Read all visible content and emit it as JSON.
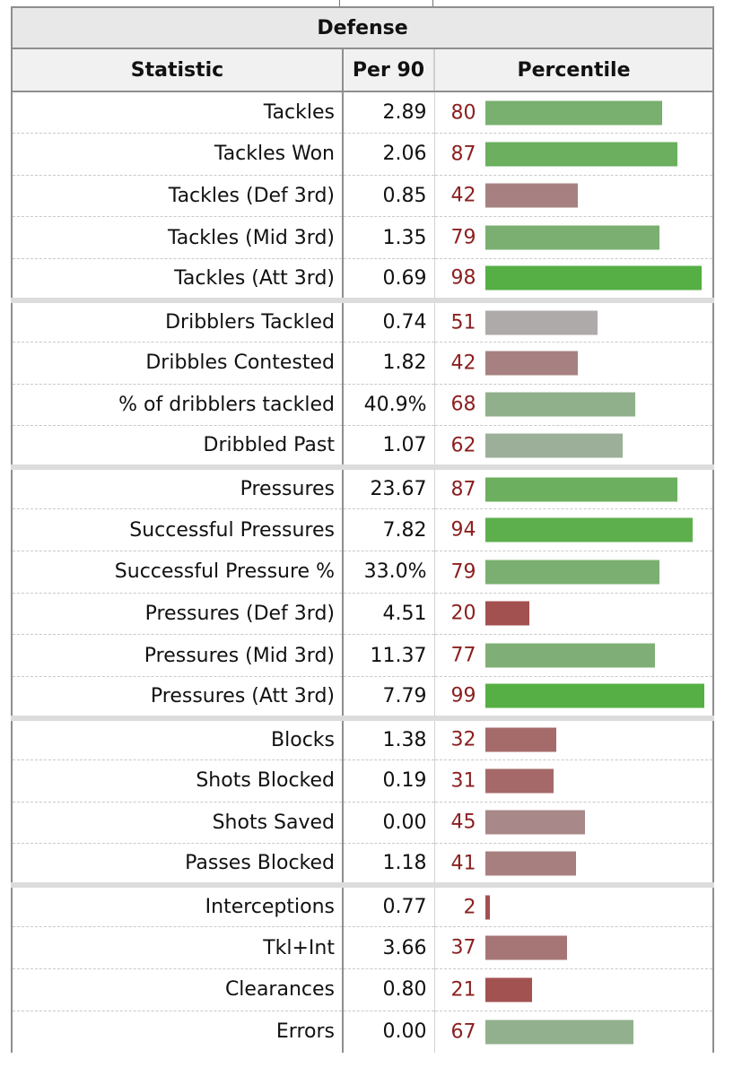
{
  "section_title": "Defense",
  "columns": {
    "statistic": "Statistic",
    "per90": "Per 90",
    "percentile": "Percentile"
  },
  "groups": [
    {
      "rows": [
        {
          "stat": "Tackles",
          "per90": "2.89",
          "pct": 80
        },
        {
          "stat": "Tackles Won",
          "per90": "2.06",
          "pct": 87
        },
        {
          "stat": "Tackles (Def 3rd)",
          "per90": "0.85",
          "pct": 42
        },
        {
          "stat": "Tackles (Mid 3rd)",
          "per90": "1.35",
          "pct": 79
        },
        {
          "stat": "Tackles (Att 3rd)",
          "per90": "0.69",
          "pct": 98
        }
      ]
    },
    {
      "rows": [
        {
          "stat": "Dribblers Tackled",
          "per90": "0.74",
          "pct": 51
        },
        {
          "stat": "Dribbles Contested",
          "per90": "1.82",
          "pct": 42
        },
        {
          "stat": "% of dribblers tackled",
          "per90": "40.9%",
          "pct": 68
        },
        {
          "stat": "Dribbled Past",
          "per90": "1.07",
          "pct": 62
        }
      ]
    },
    {
      "rows": [
        {
          "stat": "Pressures",
          "per90": "23.67",
          "pct": 87
        },
        {
          "stat": "Successful Pressures",
          "per90": "7.82",
          "pct": 94
        },
        {
          "stat": "Successful Pressure %",
          "per90": "33.0%",
          "pct": 79
        },
        {
          "stat": "Pressures (Def 3rd)",
          "per90": "4.51",
          "pct": 20
        },
        {
          "stat": "Pressures (Mid 3rd)",
          "per90": "11.37",
          "pct": 77
        },
        {
          "stat": "Pressures (Att 3rd)",
          "per90": "7.79",
          "pct": 99
        }
      ]
    },
    {
      "rows": [
        {
          "stat": "Blocks",
          "per90": "1.38",
          "pct": 32
        },
        {
          "stat": "Shots Blocked",
          "per90": "0.19",
          "pct": 31
        },
        {
          "stat": "Shots Saved",
          "per90": "0.00",
          "pct": 45
        },
        {
          "stat": "Passes Blocked",
          "per90": "1.18",
          "pct": 41
        }
      ]
    },
    {
      "rows": [
        {
          "stat": "Interceptions",
          "per90": "0.77",
          "pct": 2
        },
        {
          "stat": "Tkl+Int",
          "per90": "3.66",
          "pct": 37
        },
        {
          "stat": "Clearances",
          "per90": "0.80",
          "pct": 21
        },
        {
          "stat": "Errors",
          "per90": "0.00",
          "pct": 67
        }
      ]
    }
  ],
  "bar_colors": {
    "low": "#a35050",
    "mid_low": "#a88888",
    "neutral": "#b0b0b0",
    "high": "#55af45"
  }
}
